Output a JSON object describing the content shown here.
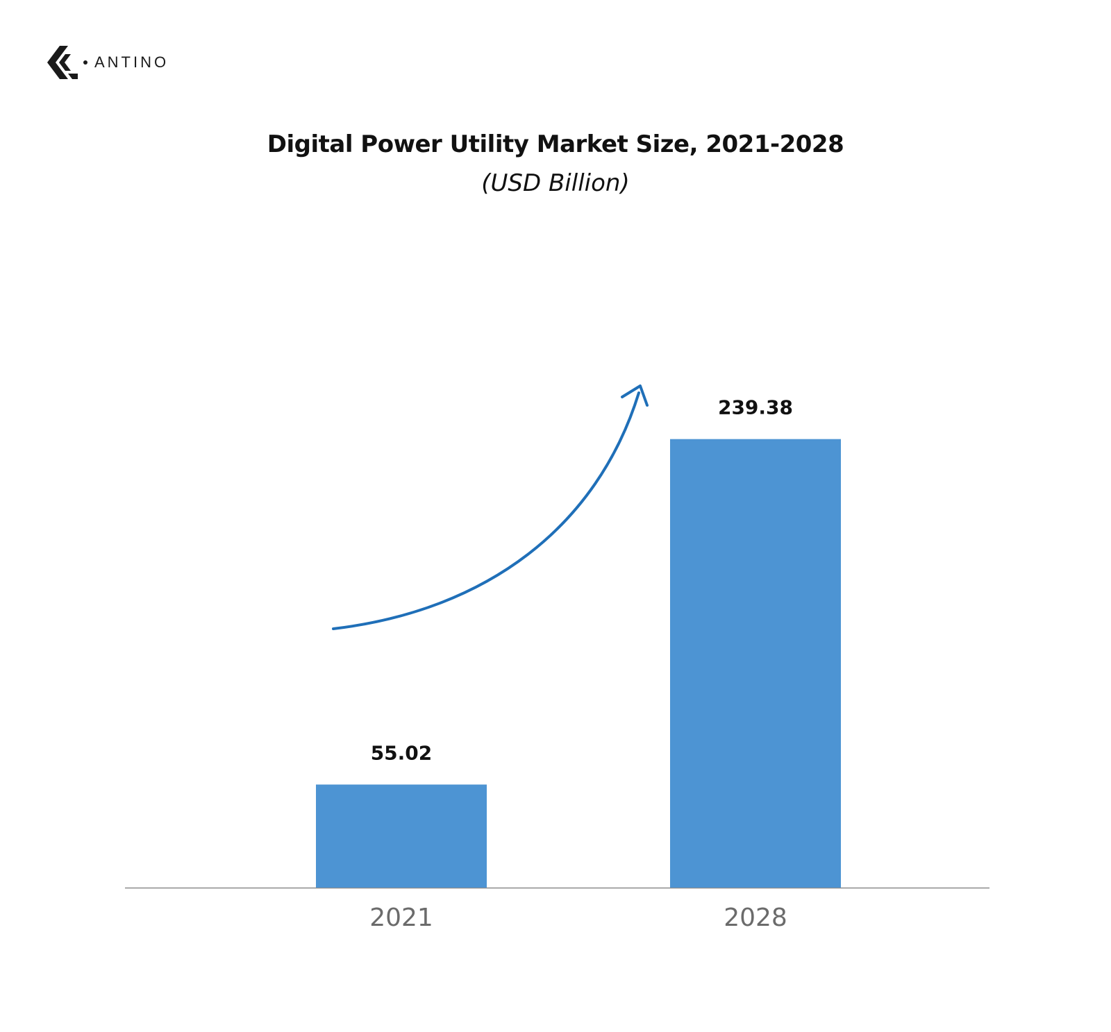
{
  "brand": {
    "name": "ANTINO",
    "logo_icon": "antino-chevron-logo"
  },
  "title": "Digital Power Utility Market Size, 2021-2028",
  "subtitle": "(USD Billion)",
  "chart_data": {
    "type": "bar",
    "title": "Digital Power Utility Market Size, 2021-2028",
    "subtitle": "(USD Billion)",
    "categories": [
      "2021",
      "2028"
    ],
    "values": [
      55.02,
      239.38
    ],
    "data_labels": [
      "55.02",
      "239.38"
    ],
    "ylim": [
      0,
      255
    ],
    "grid": false,
    "legend": "none",
    "annotation": "upward growth arrow",
    "colors": {
      "bar": "#4d94d3",
      "arrow": "#1f6fb8",
      "axis": "#8a8a8a",
      "tick_label": "#6b6b6b",
      "data_label": "#111111"
    }
  }
}
